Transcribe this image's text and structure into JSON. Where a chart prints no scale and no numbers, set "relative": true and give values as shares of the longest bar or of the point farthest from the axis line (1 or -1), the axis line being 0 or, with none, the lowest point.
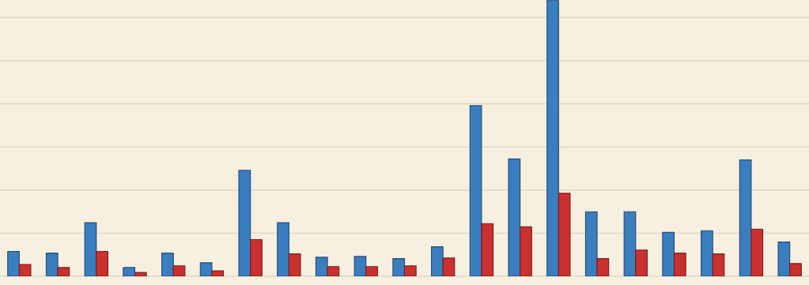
{
  "chart_data": {
    "type": "bar",
    "relative": true,
    "grid": "y",
    "categories": [
      null,
      null,
      null,
      null,
      null,
      null,
      null,
      null,
      null,
      null,
      null,
      null,
      null,
      null,
      null,
      null,
      null,
      null,
      null,
      null,
      null
    ],
    "series": [
      {
        "color": "#3a7ebf",
        "values": [
          0.09,
          0.084,
          0.194,
          0.032,
          0.084,
          0.049,
          0.384,
          0.194,
          0.069,
          0.072,
          0.064,
          0.107,
          0.618,
          0.425,
          1,
          0.234,
          0.234,
          0.159,
          0.165,
          0.422,
          0.124
        ]
      },
      {
        "color": "#c8312f",
        "values": [
          0.043,
          0.032,
          0.09,
          0.014,
          0.038,
          0.02,
          0.133,
          0.081,
          0.035,
          0.035,
          0.038,
          0.066,
          0.191,
          0.179,
          0.301,
          0.064,
          0.095,
          0.084,
          0.081,
          0.171,
          0.046
        ]
      }
    ]
  }
}
